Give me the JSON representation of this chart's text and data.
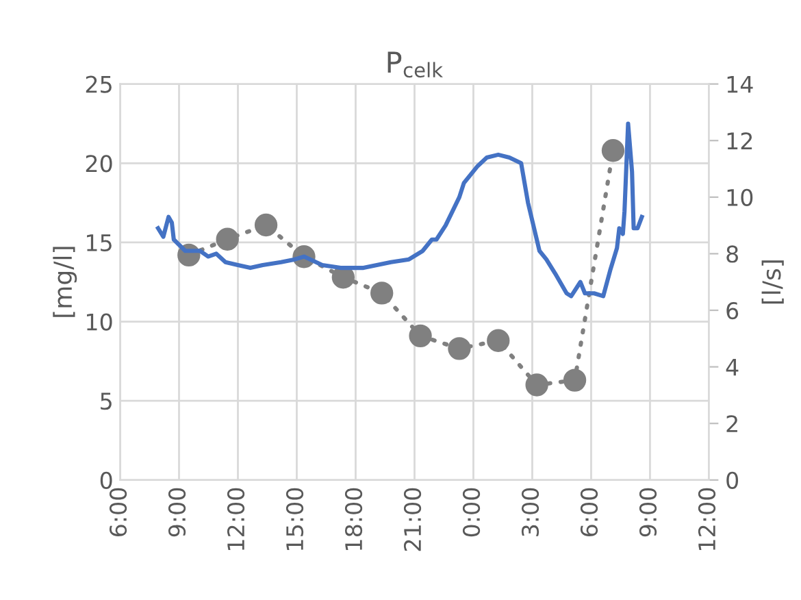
{
  "chart_data": {
    "type": "line",
    "title": "P$_{celk}$",
    "ylabel": "[mg/l]",
    "y2label": "[l/s]",
    "xlim": [
      "2000-01-01T06:00",
      "2000-01-02T12:00"
    ],
    "xticks": [
      {
        "value": "2000-01-01T06:00",
        "label": "6:00"
      },
      {
        "value": "2000-01-01T09:00",
        "label": "9:00"
      },
      {
        "value": "2000-01-01T12:00",
        "label": "12:00"
      },
      {
        "value": "2000-01-01T15:00",
        "label": "15:00"
      },
      {
        "value": "2000-01-01T18:00",
        "label": "18:00"
      },
      {
        "value": "2000-01-01T21:00",
        "label": "21:00"
      },
      {
        "value": "2000-01-02T00:00",
        "label": "0:00"
      },
      {
        "value": "2000-01-02T03:00",
        "label": "3:00"
      },
      {
        "value": "2000-01-02T06:00",
        "label": "6:00"
      },
      {
        "value": "2000-01-02T09:00",
        "label": "9:00"
      },
      {
        "value": "2000-01-02T12:00",
        "label": "12:00"
      }
    ],
    "ylim": [
      0,
      25
    ],
    "yticks": [
      0,
      5,
      10,
      15,
      20,
      25
    ],
    "y2lim": [
      0,
      14
    ],
    "y2ticks": [
      0,
      2,
      4,
      6,
      8,
      10,
      12,
      14
    ],
    "grid": true,
    "series": [
      {
        "color": "#808080",
        "marker": "circle",
        "line_style": "dotted",
        "x": [
          "2000-01-01T09:30",
          "2000-01-01T11:28",
          "2000-01-01T13:26",
          "2000-01-01T15:22",
          "2000-01-01T17:22",
          "2000-01-01T19:20",
          "2000-01-01T21:18",
          "2000-01-01T23:17",
          "2000-01-02T01:16",
          "2000-01-02T03:14",
          "2000-01-02T05:10",
          "2000-01-02T07:07"
        ],
        "values": [
          14.2,
          15.2,
          16.1,
          14.1,
          12.8,
          11.8,
          9.1,
          8.3,
          8.8,
          6.0,
          6.3,
          20.8
        ]
      },
      {
        "color": "#4472c4",
        "axis": "y2",
        "marker": "none",
        "line_style": "solid",
        "x": [
          "2000-01-01T07:56",
          "2000-01-01T08:12",
          "2000-01-01T08:28",
          "2000-01-01T08:38",
          "2000-01-01T08:44",
          "2000-01-01T09:19",
          "2000-01-01T10:04",
          "2000-01-01T10:29",
          "2000-01-01T10:54",
          "2000-01-01T11:22",
          "2000-01-01T12:00",
          "2000-01-01T12:38",
          "2000-01-01T13:16",
          "2000-01-01T14:12",
          "2000-01-01T14:54",
          "2000-01-01T15:22",
          "2000-01-01T16:18",
          "2000-01-01T17:14",
          "2000-01-01T18:24",
          "2000-01-01T19:48",
          "2000-01-01T20:43",
          "2000-01-01T21:25",
          "2000-01-01T21:53",
          "2000-01-01T22:07",
          "2000-01-01T22:35",
          "2000-01-01T23:17",
          "2000-01-01T23:31",
          "2000-01-02T00:13",
          "2000-01-02T00:41",
          "2000-01-02T01:16",
          "2000-01-02T01:50",
          "2000-01-02T02:26",
          "2000-01-02T02:47",
          "2000-01-02T03:22",
          "2000-01-02T03:43",
          "2000-01-02T04:10",
          "2000-01-02T04:45",
          "2000-01-02T04:59",
          "2000-01-02T05:27",
          "2000-01-02T05:41",
          "2000-01-02T06:09",
          "2000-01-02T06:37",
          "2000-01-02T06:58",
          "2000-01-02T07:19",
          "2000-01-02T07:26",
          "2000-01-02T07:37",
          "2000-01-02T07:42",
          "2000-01-02T07:53",
          "2000-01-02T08:05",
          "2000-01-02T08:10",
          "2000-01-02T08:22",
          "2000-01-02T08:35"
        ],
        "values": [
          8.9,
          8.6,
          9.3,
          9.1,
          8.5,
          8.1,
          8.1,
          7.9,
          8.0,
          7.7,
          7.6,
          7.5,
          7.6,
          7.7,
          7.8,
          7.9,
          7.6,
          7.5,
          7.5,
          7.7,
          7.8,
          8.1,
          8.5,
          8.5,
          9.0,
          10.0,
          10.5,
          11.1,
          11.4,
          11.5,
          11.4,
          11.2,
          9.8,
          8.1,
          7.8,
          7.3,
          6.6,
          6.5,
          7.0,
          6.6,
          6.6,
          6.5,
          7.4,
          8.2,
          8.9,
          8.7,
          9.5,
          12.6,
          10.9,
          8.9,
          8.9,
          9.3
        ]
      }
    ]
  }
}
